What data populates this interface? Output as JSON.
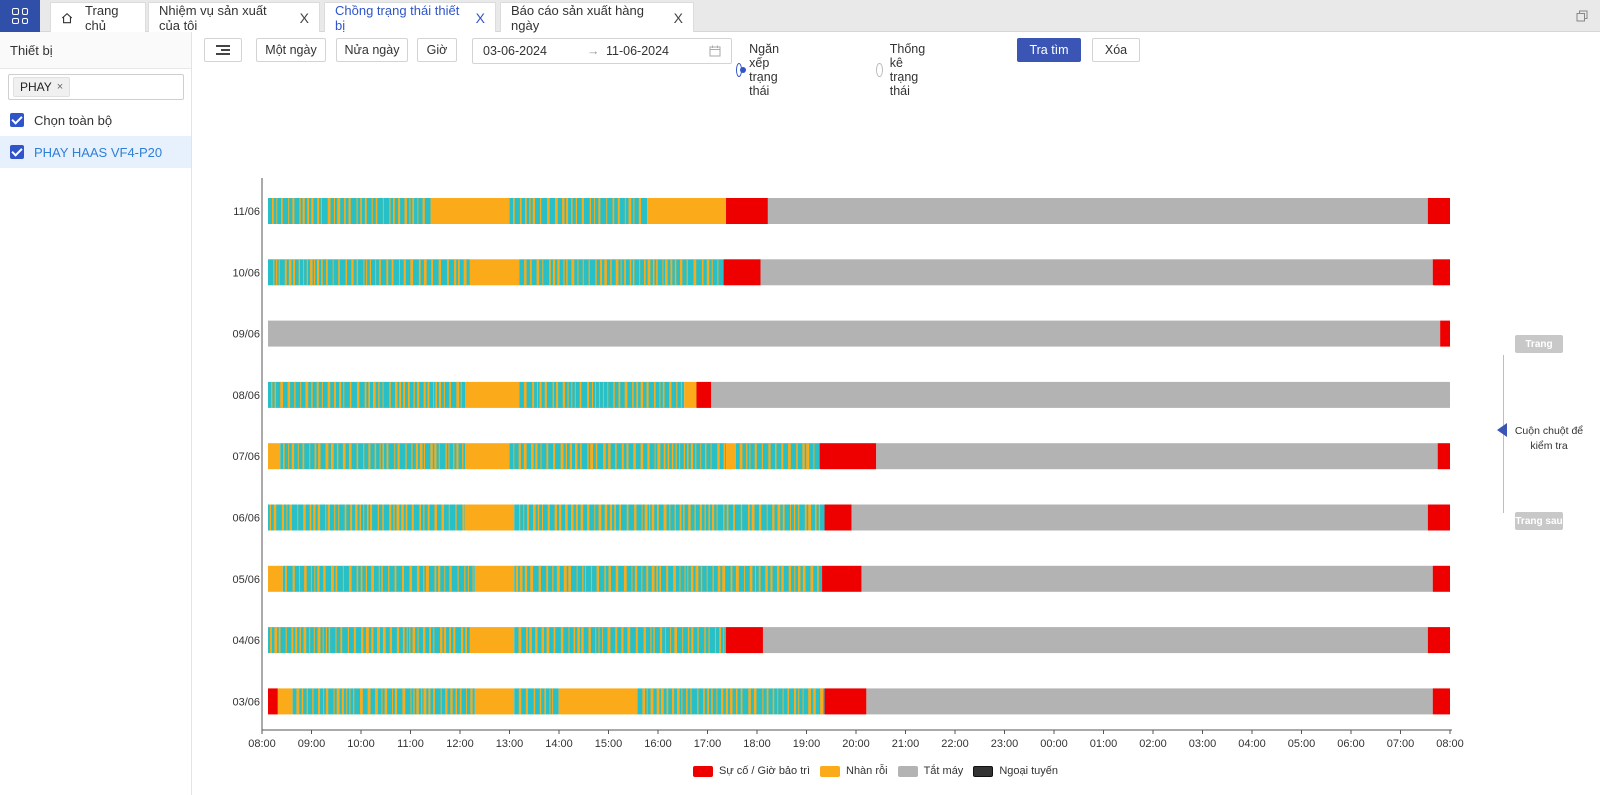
{
  "tabs": {
    "home": "Trang chủ",
    "items": [
      {
        "label": "Nhiệm vụ sản xuất của tôi"
      },
      {
        "label": "Chồng trạng thái thiết bị"
      },
      {
        "label": "Báo cáo sản xuất hàng ngày"
      }
    ],
    "close_glyph": "X"
  },
  "sidebar": {
    "title": "Thiết bị",
    "chip": "PHAY",
    "chip_remove": "×",
    "select_all": "Chọn toàn bộ",
    "device": "PHAY HAAS VF4-P20"
  },
  "toolbar": {
    "one_day": "Một ngày",
    "half_day": "Nửa ngày",
    "hour": "Giờ",
    "date_from": "03-06-2024",
    "date_arrow": "→",
    "date_to": "11-06-2024",
    "radio_stack": "Ngăn xếp trạng thái",
    "radio_stats": "Thống kê trạng thái",
    "search": "Tra tìm",
    "clear": "Xóa"
  },
  "scroller": {
    "prev": "Trang",
    "next": "Trang sau",
    "hint": "Cuộn chuột để kiểm tra"
  },
  "colors": {
    "fault": "#ee0000",
    "idle": "#fbaa1a",
    "off": "#b3b3b3",
    "offline": "#333333",
    "run": "#27c0c8"
  },
  "chart_data": {
    "type": "bar",
    "orientation": "horizontal-timeline",
    "categories": [
      "11/06",
      "10/06",
      "09/06",
      "08/06",
      "07/06",
      "06/06",
      "05/06",
      "04/06",
      "03/06"
    ],
    "x_ticks": [
      "08:00",
      "09:00",
      "10:00",
      "11:00",
      "12:00",
      "13:00",
      "14:00",
      "15:00",
      "16:00",
      "17:00",
      "18:00",
      "19:00",
      "20:00",
      "21:00",
      "22:00",
      "23:00",
      "00:00",
      "01:00",
      "02:00",
      "03:00",
      "04:00",
      "05:00",
      "06:00",
      "07:00",
      "08:00"
    ],
    "xlim_hours": [
      0,
      24
    ],
    "legend": [
      {
        "key": "fault",
        "label": "Sự cố / Giờ bảo trì"
      },
      {
        "key": "idle",
        "label": "Nhàn rỗi"
      },
      {
        "key": "off",
        "label": "Tắt máy"
      },
      {
        "key": "offline",
        "label": "Ngoại tuyến"
      }
    ],
    "legend_position": "bottom-center",
    "rows": [
      {
        "date": "11/06",
        "segments": [
          [
            "mix",
            0,
            3.3
          ],
          [
            "idle",
            3.3,
            4.9
          ],
          [
            "mix",
            4.9,
            7.7
          ],
          [
            "idle",
            7.7,
            9.3
          ],
          [
            "fault",
            9.3,
            10.15
          ],
          [
            "off",
            10.15,
            23.55
          ],
          [
            "fault",
            23.55,
            24
          ]
        ]
      },
      {
        "date": "10/06",
        "segments": [
          [
            "mix",
            0,
            4.1
          ],
          [
            "idle",
            4.1,
            5.1
          ],
          [
            "mix",
            5.1,
            9.25
          ],
          [
            "fault",
            9.25,
            10.0
          ],
          [
            "off",
            10.0,
            23.65
          ],
          [
            "fault",
            23.65,
            24
          ]
        ]
      },
      {
        "date": "09/06",
        "segments": [
          [
            "off",
            0,
            23.8
          ],
          [
            "fault",
            23.8,
            24
          ]
        ]
      },
      {
        "date": "08/06",
        "segments": [
          [
            "mix",
            0,
            4.0
          ],
          [
            "idle",
            4.0,
            5.1
          ],
          [
            "mix",
            5.1,
            8.45
          ],
          [
            "idle",
            8.45,
            8.7
          ],
          [
            "fault",
            8.7,
            9.0
          ],
          [
            "off",
            9.0,
            24
          ]
        ]
      },
      {
        "date": "07/06",
        "segments": [
          [
            "idle",
            0,
            0.25
          ],
          [
            "mix",
            0.25,
            4.0
          ],
          [
            "idle",
            4.0,
            4.9
          ],
          [
            "mix",
            4.9,
            9.3
          ],
          [
            "idle",
            9.3,
            9.5
          ],
          [
            "mix",
            9.5,
            11.2
          ],
          [
            "fault",
            11.2,
            12.35
          ],
          [
            "off",
            12.35,
            23.75
          ],
          [
            "fault",
            23.75,
            24
          ]
        ]
      },
      {
        "date": "06/06",
        "segments": [
          [
            "mix",
            0,
            4.0
          ],
          [
            "idle",
            4.0,
            5.0
          ],
          [
            "mix",
            5.0,
            11.3
          ],
          [
            "fault",
            11.3,
            11.85
          ],
          [
            "off",
            11.85,
            23.55
          ],
          [
            "fault",
            23.55,
            24
          ]
        ]
      },
      {
        "date": "05/06",
        "segments": [
          [
            "idle",
            0,
            0.3
          ],
          [
            "mix",
            0.3,
            4.2
          ],
          [
            "idle",
            4.2,
            5.0
          ],
          [
            "mix",
            5.0,
            11.25
          ],
          [
            "fault",
            11.25,
            12.05
          ],
          [
            "off",
            12.05,
            23.65
          ],
          [
            "fault",
            23.65,
            24
          ]
        ]
      },
      {
        "date": "04/06",
        "segments": [
          [
            "mix",
            0,
            4.1
          ],
          [
            "idle",
            4.1,
            5.0
          ],
          [
            "mix",
            5.0,
            9.3
          ],
          [
            "fault",
            9.3,
            10.05
          ],
          [
            "off",
            10.05,
            23.55
          ],
          [
            "fault",
            23.55,
            24
          ]
        ]
      },
      {
        "date": "03/06",
        "segments": [
          [
            "fault",
            0,
            0.2
          ],
          [
            "idle",
            0.2,
            0.5
          ],
          [
            "mix",
            0.5,
            4.2
          ],
          [
            "idle",
            4.2,
            5.0
          ],
          [
            "mix",
            5.0,
            5.9
          ],
          [
            "idle",
            5.9,
            7.5
          ],
          [
            "mix",
            7.5,
            11.3
          ],
          [
            "fault",
            11.3,
            12.15
          ],
          [
            "off",
            12.15,
            23.65
          ],
          [
            "fault",
            23.65,
            24
          ]
        ]
      }
    ]
  }
}
